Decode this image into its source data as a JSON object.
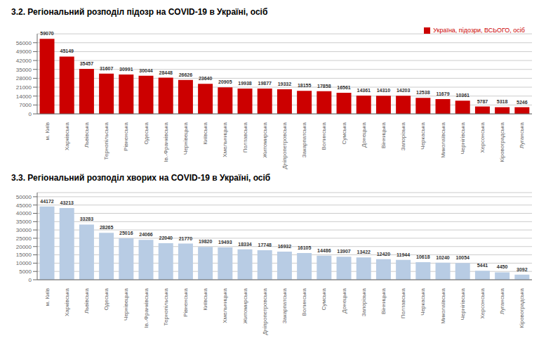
{
  "chart_data": [
    {
      "type": "bar",
      "title": "3.2. Регіональний розподіл підозр на COVID-19 в Україні, осіб",
      "categories": [
        "м. Київ",
        "Харківська",
        "Львівська",
        "Тернопільська",
        "Рівненська",
        "Одеська",
        "Ів.-Франківська",
        "Чернівецька",
        "Київська",
        "Хмельницька",
        "Полтавська",
        "Житомирська",
        "Дніпропетровська",
        "Закарпатська",
        "Волинська",
        "Сумська",
        "Донецька",
        "Вінницька",
        "Запорізька",
        "Черкаська",
        "Миколаївська",
        "Чернігівська",
        "Херсонська",
        "Кіровоградська",
        "Луганська"
      ],
      "series": [
        {
          "name": "Україна, підозри, ВСЬОГО, осіб",
          "color": "#CC0000",
          "values": [
            59070,
            45149,
            35457,
            31607,
            30991,
            30044,
            28448,
            26626,
            23640,
            20905,
            19938,
            19877,
            19332,
            18155,
            17858,
            16561,
            14361,
            14310,
            14203,
            12538,
            11679,
            10361,
            5787,
            5318,
            5246
          ]
        }
      ],
      "ylim": [
        0,
        63000
      ],
      "yticks": [
        0,
        7000,
        14000,
        21000,
        28000,
        35000,
        42000,
        49000,
        56000
      ],
      "grid": true,
      "legend": "upper right",
      "data_labels": true
    },
    {
      "type": "bar",
      "title": "3.3. Регіональний розподіл хворих на COVID-19 в Україні, осіб",
      "categories": [
        "м. Київ",
        "Харківська",
        "Львівська",
        "Одеська",
        "Чернівецька",
        "Ів.-Франківська",
        "Тернопільська",
        "Рівненська",
        "Київська",
        "Хмельницька",
        "Житомирська",
        "Дніпропетровська",
        "Закарпатська",
        "Волинська",
        "Сумська",
        "Донецька",
        "Запорізька",
        "Вінницька",
        "Полтавська",
        "Черкаська",
        "Миколаївська",
        "Чернігівська",
        "Херсонська",
        "Луганська",
        "Кіровоградська"
      ],
      "values": [
        44172,
        43213,
        33283,
        28265,
        25016,
        24066,
        22040,
        21770,
        19820,
        19493,
        18334,
        17748,
        16932,
        16105,
        14486,
        13907,
        13422,
        12420,
        11944,
        10618,
        10240,
        10054,
        5441,
        4450,
        3092
      ],
      "color": "#B8CCE4",
      "ylim": [
        0,
        52500
      ],
      "yticks": [
        0,
        5000,
        10000,
        15000,
        20000,
        25000,
        30000,
        35000,
        40000,
        45000,
        50000
      ],
      "grid": true,
      "data_labels": true
    }
  ]
}
